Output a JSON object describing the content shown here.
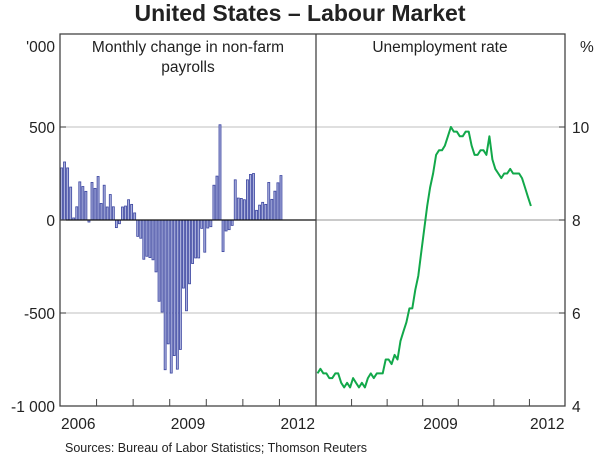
{
  "title": "United States – Labour Market",
  "source": "Sources: Bureau of Labor Statistics; Thomson Reuters",
  "colors": {
    "bars": "#3a44a0",
    "line": "#12a84a",
    "grid": "#cccccc",
    "axis": "#444444"
  },
  "chart_data": [
    {
      "type": "bar",
      "title": "Monthly change in non-farm payrolls",
      "unit_label": "'000",
      "axis_side": "left",
      "ylim": [
        -1000,
        1000
      ],
      "yticks": [
        500,
        0,
        -500,
        -1000
      ],
      "ytick_labels": [
        "500",
        "0",
        "-500",
        "-1 000"
      ],
      "xlim": [
        "2006-01",
        "2013-01"
      ],
      "xtick_labels": [
        "2006",
        "2009",
        "2012"
      ],
      "grid": true,
      "x_start": "2006-01",
      "frequency": "monthly",
      "values": [
        280,
        312,
        280,
        177,
        11,
        71,
        205,
        180,
        154,
        -11,
        202,
        170,
        234,
        89,
        187,
        70,
        137,
        71,
        -41,
        -20,
        70,
        75,
        109,
        84,
        38,
        -88,
        -98,
        -211,
        -195,
        -202,
        -214,
        -279,
        -437,
        -495,
        -805,
        -666,
        -823,
        -729,
        -802,
        -696,
        -366,
        -488,
        -343,
        -234,
        -204,
        -204,
        -45,
        -173,
        -43,
        -36,
        187,
        236,
        512,
        -170,
        -59,
        -52,
        -29,
        216,
        118,
        116,
        109,
        216,
        245,
        250,
        52,
        80,
        95,
        84,
        202,
        111,
        155,
        200,
        239
      ]
    },
    {
      "type": "line",
      "title": "Unemployment rate",
      "unit_label": "%",
      "axis_side": "right",
      "ylim": [
        4,
        12
      ],
      "yticks": [
        10,
        8,
        6,
        4
      ],
      "ytick_labels": [
        "10",
        "8",
        "6",
        "4"
      ],
      "xlim": [
        "2006-01",
        "2013-01"
      ],
      "xtick_labels": [
        "2009",
        "2012"
      ],
      "grid": true,
      "x_start": "2006-01",
      "frequency": "monthly",
      "values": [
        4.7,
        4.8,
        4.7,
        4.7,
        4.6,
        4.6,
        4.7,
        4.7,
        4.5,
        4.4,
        4.5,
        4.4,
        4.6,
        4.5,
        4.4,
        4.5,
        4.4,
        4.6,
        4.7,
        4.6,
        4.7,
        4.7,
        4.7,
        5.0,
        5.0,
        4.9,
        5.1,
        5.0,
        5.4,
        5.6,
        5.8,
        6.1,
        6.1,
        6.5,
        6.8,
        7.3,
        7.8,
        8.3,
        8.7,
        9.0,
        9.4,
        9.5,
        9.5,
        9.6,
        9.8,
        10.0,
        9.9,
        9.9,
        9.8,
        9.8,
        9.9,
        9.9,
        9.6,
        9.4,
        9.4,
        9.5,
        9.5,
        9.4,
        9.8,
        9.3,
        9.1,
        9.0,
        8.9,
        9.0,
        9.0,
        9.1,
        9.0,
        9.0,
        9.0,
        8.9,
        8.7,
        8.5,
        8.3
      ]
    }
  ]
}
